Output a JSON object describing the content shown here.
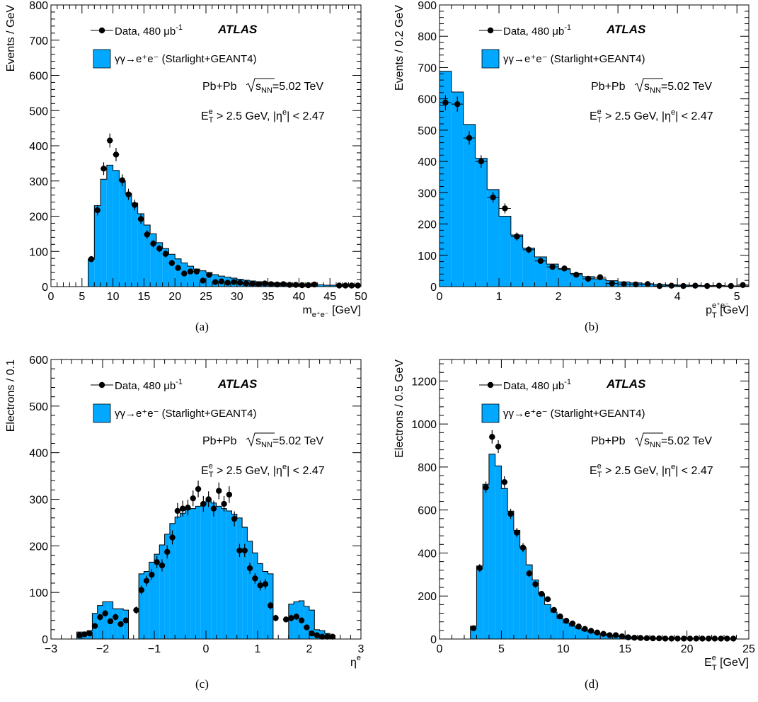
{
  "colors": {
    "mc_fill": "#00a9ff",
    "line": "#000000"
  },
  "common": {
    "atlas_label": "ATLAS",
    "data_legend": "Data, 480 μb",
    "data_legend_sup": "-1",
    "mc_legend": "γγ→e⁺e⁻ (Starlight+GEANT4)",
    "system_pre": "Pb+Pb",
    "sqrt_s": "s",
    "sqrt_sub": "NN",
    "energy": "=5.02 TeV",
    "cut_label": "E",
    "cut_sup": "e",
    "cut_sub": "T",
    "cut_text": "> 2.5 GeV, |η",
    "cut_text_sup": "e",
    "cut_text_end": "| < 2.47"
  },
  "chart_data": [
    {
      "id": "a",
      "caption": "(a)",
      "type": "bar",
      "ylabel": "Events / GeV",
      "xlabel": "m",
      "xlabel_sub": "e⁺e⁻",
      "xlabel_unit": " [GeV]",
      "xlim": [
        0,
        50
      ],
      "ylim": [
        0,
        800
      ],
      "xticks": [
        0,
        5,
        10,
        15,
        20,
        25,
        30,
        35,
        40,
        45,
        50
      ],
      "yticks": [
        0,
        100,
        200,
        300,
        400,
        500,
        600,
        700,
        800
      ],
      "bin_edges": [
        6,
        7,
        8,
        9,
        10,
        11,
        12,
        13,
        14,
        15,
        16,
        17,
        18,
        19,
        20,
        21,
        22,
        23,
        24,
        25,
        26,
        27,
        28,
        29,
        30,
        31,
        32,
        33,
        34,
        35,
        36,
        37,
        38,
        39,
        40,
        41,
        42,
        43,
        44,
        45,
        46,
        47,
        48,
        49,
        50
      ],
      "mc_values": [
        78,
        230,
        305,
        345,
        330,
        300,
        265,
        237,
        207,
        175,
        150,
        125,
        108,
        92,
        79,
        67,
        58,
        50,
        45,
        40,
        34,
        30,
        27,
        24,
        21,
        18,
        16,
        14,
        12,
        11,
        10,
        9,
        8,
        7,
        6,
        6,
        5,
        5,
        4,
        4,
        3,
        3,
        3,
        3
      ],
      "data_series": {
        "name": "Data, 480 μb-1",
        "x": [
          6.5,
          7.5,
          8.5,
          9.5,
          10.5,
          11.5,
          12.5,
          13.5,
          14.5,
          15.5,
          16.5,
          17.5,
          18.5,
          19.5,
          20.5,
          21.5,
          22.5,
          23.5,
          24.5,
          25.5,
          26.5,
          27.5,
          28.5,
          29.5,
          30.5,
          31.5,
          32.5,
          33.5,
          34.5,
          35.5,
          36.5,
          37.5,
          38.5,
          39.5,
          40.5,
          41.5,
          42.5,
          46.5,
          47.5,
          48.5,
          49.5
        ],
        "y": [
          78,
          217,
          335,
          415,
          375,
          302,
          262,
          232,
          192,
          148,
          122,
          108,
          93,
          67,
          53,
          37,
          43,
          43,
          17,
          33,
          13,
          15,
          11,
          13,
          11,
          9,
          8,
          7,
          9,
          7,
          6,
          7,
          5,
          5,
          4,
          4,
          6,
          3,
          3,
          3,
          3
        ],
        "err": [
          9,
          15,
          18,
          20,
          19,
          17,
          16,
          15,
          14,
          12,
          11,
          10,
          10,
          8,
          7,
          6,
          7,
          7,
          4,
          6,
          4,
          4,
          3,
          4,
          3,
          3,
          3,
          3,
          3,
          3,
          2,
          3,
          2,
          2,
          2,
          2,
          2,
          2,
          2,
          2,
          2
        ]
      }
    },
    {
      "id": "b",
      "caption": "(b)",
      "type": "bar",
      "ylabel": "Events / 0.2 GeV",
      "xlabel": "p",
      "xlabel_sup": "e⁺e⁻",
      "xlabel_sub": "T",
      "xlabel_unit": " [GeV]",
      "xlim": [
        0,
        5.2
      ],
      "ylim": [
        0,
        900
      ],
      "xticks": [
        0,
        1,
        2,
        3,
        4,
        5
      ],
      "yticks": [
        0,
        100,
        200,
        300,
        400,
        500,
        600,
        700,
        800,
        900
      ],
      "bin_edges": [
        0,
        0.2,
        0.4,
        0.6,
        0.8,
        1.0,
        1.2,
        1.4,
        1.6,
        1.8,
        2.0,
        2.2,
        2.4,
        2.6,
        2.8,
        3.0,
        3.2,
        3.4,
        3.6,
        3.8,
        4.0,
        4.2,
        4.4,
        4.6,
        4.8,
        5.0,
        5.2
      ],
      "mc_values": [
        688,
        622,
        518,
        410,
        310,
        225,
        165,
        123,
        95,
        72,
        55,
        42,
        32,
        25,
        19,
        15,
        12,
        9,
        7,
        6,
        5,
        4,
        3,
        3,
        2,
        2
      ],
      "data_series": {
        "name": "Data, 480 μb-1",
        "x": [
          0.1,
          0.3,
          0.5,
          0.7,
          0.9,
          1.1,
          1.3,
          1.5,
          1.7,
          1.9,
          2.1,
          2.3,
          2.5,
          2.7,
          2.9,
          3.1,
          3.3,
          3.5,
          3.7,
          3.9,
          4.1,
          4.3,
          4.5,
          4.7,
          4.9,
          5.1
        ],
        "y": [
          588,
          583,
          475,
          400,
          285,
          250,
          160,
          118,
          82,
          63,
          58,
          38,
          25,
          30,
          10,
          8,
          7,
          8,
          2,
          3,
          2,
          3,
          2,
          3,
          2,
          5
        ],
        "err": [
          24,
          24,
          22,
          20,
          17,
          16,
          13,
          11,
          9,
          8,
          8,
          6,
          5,
          6,
          3,
          3,
          3,
          3,
          2,
          2,
          2,
          2,
          2,
          2,
          2,
          2
        ]
      }
    },
    {
      "id": "c",
      "caption": "(c)",
      "type": "bar",
      "ylabel": "Electrons / 0.1",
      "xlabel": "η",
      "xlabel_sup": "e",
      "xlabel_unit": "",
      "xlim": [
        -3,
        3
      ],
      "ylim": [
        0,
        600
      ],
      "xticks": [
        -3,
        -2,
        -1,
        0,
        1,
        2,
        3
      ],
      "xtick_labels": [
        "−3",
        "−2",
        "−1",
        "0",
        "1",
        "2",
        "3"
      ],
      "yticks": [
        0,
        100,
        200,
        300,
        400,
        500,
        600
      ],
      "bin_edges": [
        -2.5,
        -2.4,
        -2.3,
        -2.2,
        -2.1,
        -2.0,
        -1.9,
        -1.8,
        -1.7,
        -1.6,
        -1.5,
        -1.4,
        -1.3,
        -1.2,
        -1.1,
        -1.0,
        -0.9,
        -0.8,
        -0.7,
        -0.6,
        -0.5,
        -0.4,
        -0.3,
        -0.2,
        -0.1,
        0.0,
        0.1,
        0.2,
        0.3,
        0.4,
        0.5,
        0.6,
        0.7,
        0.8,
        0.9,
        1.0,
        1.1,
        1.2,
        1.3,
        1.4,
        1.5,
        1.6,
        1.7,
        1.8,
        1.9,
        2.0,
        2.1,
        2.2,
        2.3,
        2.4,
        2.5
      ],
      "mc_values": [
        15,
        15,
        18,
        55,
        72,
        80,
        80,
        65,
        65,
        62,
        0,
        0,
        140,
        145,
        165,
        182,
        202,
        225,
        248,
        262,
        270,
        278,
        280,
        285,
        292,
        300,
        292,
        285,
        280,
        275,
        268,
        260,
        240,
        210,
        185,
        162,
        145,
        140,
        0,
        0,
        0,
        75,
        80,
        82,
        70,
        62,
        20,
        18,
        12,
        8
      ],
      "data_series": {
        "name": "Data, 480 μb-1",
        "x": [
          -2.45,
          -2.35,
          -2.25,
          -2.15,
          -2.05,
          -1.95,
          -1.85,
          -1.75,
          -1.65,
          -1.55,
          -1.35,
          -1.25,
          -1.15,
          -1.05,
          -0.95,
          -0.85,
          -0.75,
          -0.65,
          -0.55,
          -0.45,
          -0.35,
          -0.25,
          -0.15,
          -0.05,
          0.05,
          0.15,
          0.25,
          0.35,
          0.45,
          0.55,
          0.65,
          0.75,
          0.85,
          0.95,
          1.05,
          1.15,
          1.25,
          1.35,
          1.55,
          1.65,
          1.75,
          1.85,
          1.95,
          2.05,
          2.15,
          2.25,
          2.35,
          2.45
        ],
        "y": [
          8,
          10,
          12,
          28,
          47,
          55,
          38,
          47,
          32,
          40,
          62,
          105,
          125,
          138,
          165,
          158,
          187,
          218,
          275,
          280,
          282,
          302,
          322,
          290,
          300,
          280,
          318,
          290,
          310,
          258,
          190,
          190,
          152,
          130,
          115,
          118,
          72,
          45,
          42,
          45,
          48,
          40,
          25,
          12,
          8,
          5,
          5,
          5
        ],
        "err": [
          3,
          3,
          4,
          5,
          7,
          7,
          6,
          7,
          6,
          6,
          8,
          10,
          11,
          12,
          13,
          13,
          14,
          15,
          17,
          17,
          17,
          17,
          18,
          17,
          17,
          17,
          18,
          17,
          18,
          16,
          14,
          14,
          12,
          11,
          11,
          11,
          8,
          7,
          6,
          7,
          7,
          6,
          5,
          3,
          3,
          2,
          2,
          2
        ]
      }
    },
    {
      "id": "d",
      "caption": "(d)",
      "type": "bar",
      "ylabel": "Electrons / 0.5 GeV",
      "xlabel": "E",
      "xlabel_sup": "e",
      "xlabel_sub": "T",
      "xlabel_unit": " [GeV]",
      "xlim": [
        0,
        25
      ],
      "ylim": [
        0,
        1300
      ],
      "xticks": [
        0,
        5,
        10,
        15,
        20,
        25
      ],
      "yticks": [
        0,
        200,
        400,
        600,
        800,
        1000,
        1200
      ],
      "bin_edges": [
        2.5,
        3.0,
        3.5,
        4.0,
        4.5,
        5.0,
        5.5,
        6.0,
        6.5,
        7.0,
        7.5,
        8.0,
        8.5,
        9.0,
        9.5,
        10.0,
        10.5,
        11.0,
        11.5,
        12.0,
        12.5,
        13.0,
        13.5,
        14.0,
        14.5,
        15.0,
        15.5,
        16.0,
        16.5,
        17.0,
        17.5,
        18.0,
        18.5,
        19.0,
        19.5,
        20.0,
        20.5,
        21.0,
        21.5,
        22.0,
        22.5,
        23.0,
        23.5,
        24.0
      ],
      "mc_values": [
        60,
        340,
        720,
        860,
        805,
        700,
        595,
        505,
        425,
        345,
        275,
        210,
        160,
        125,
        95,
        75,
        60,
        48,
        40,
        32,
        26,
        22,
        18,
        15,
        12,
        10,
        8,
        7,
        6,
        5,
        5,
        4,
        4,
        3,
        3,
        3,
        2,
        2,
        2,
        2,
        2,
        2,
        2
      ],
      "data_series": {
        "name": "Data, 480 μb-1",
        "x": [
          2.75,
          3.25,
          3.75,
          4.25,
          4.75,
          5.25,
          5.75,
          6.25,
          6.75,
          7.25,
          7.75,
          8.25,
          8.75,
          9.25,
          9.75,
          10.25,
          10.75,
          11.25,
          11.75,
          12.25,
          12.75,
          13.25,
          13.75,
          14.25,
          14.75,
          15.25,
          15.75,
          16.25,
          16.75,
          17.25,
          17.75,
          18.25,
          18.75,
          19.25,
          19.75,
          20.25,
          20.75,
          21.25,
          21.75,
          22.25,
          22.75,
          23.25,
          23.75
        ],
        "y": [
          50,
          330,
          705,
          940,
          895,
          730,
          582,
          495,
          425,
          305,
          255,
          210,
          185,
          135,
          105,
          85,
          72,
          58,
          47,
          38,
          30,
          24,
          18,
          18,
          12,
          8,
          6,
          5,
          4,
          3,
          3,
          2,
          2,
          2,
          2,
          2,
          2,
          2,
          2,
          2,
          2,
          2,
          2
        ],
        "err": [
          7,
          18,
          27,
          31,
          30,
          27,
          24,
          22,
          21,
          17,
          16,
          14,
          14,
          12,
          10,
          9,
          8,
          8,
          7,
          6,
          5,
          5,
          4,
          4,
          3,
          3,
          2,
          2,
          2,
          2,
          2,
          1,
          1,
          1,
          1,
          1,
          1,
          1,
          1,
          1,
          1,
          1,
          1
        ]
      }
    }
  ]
}
